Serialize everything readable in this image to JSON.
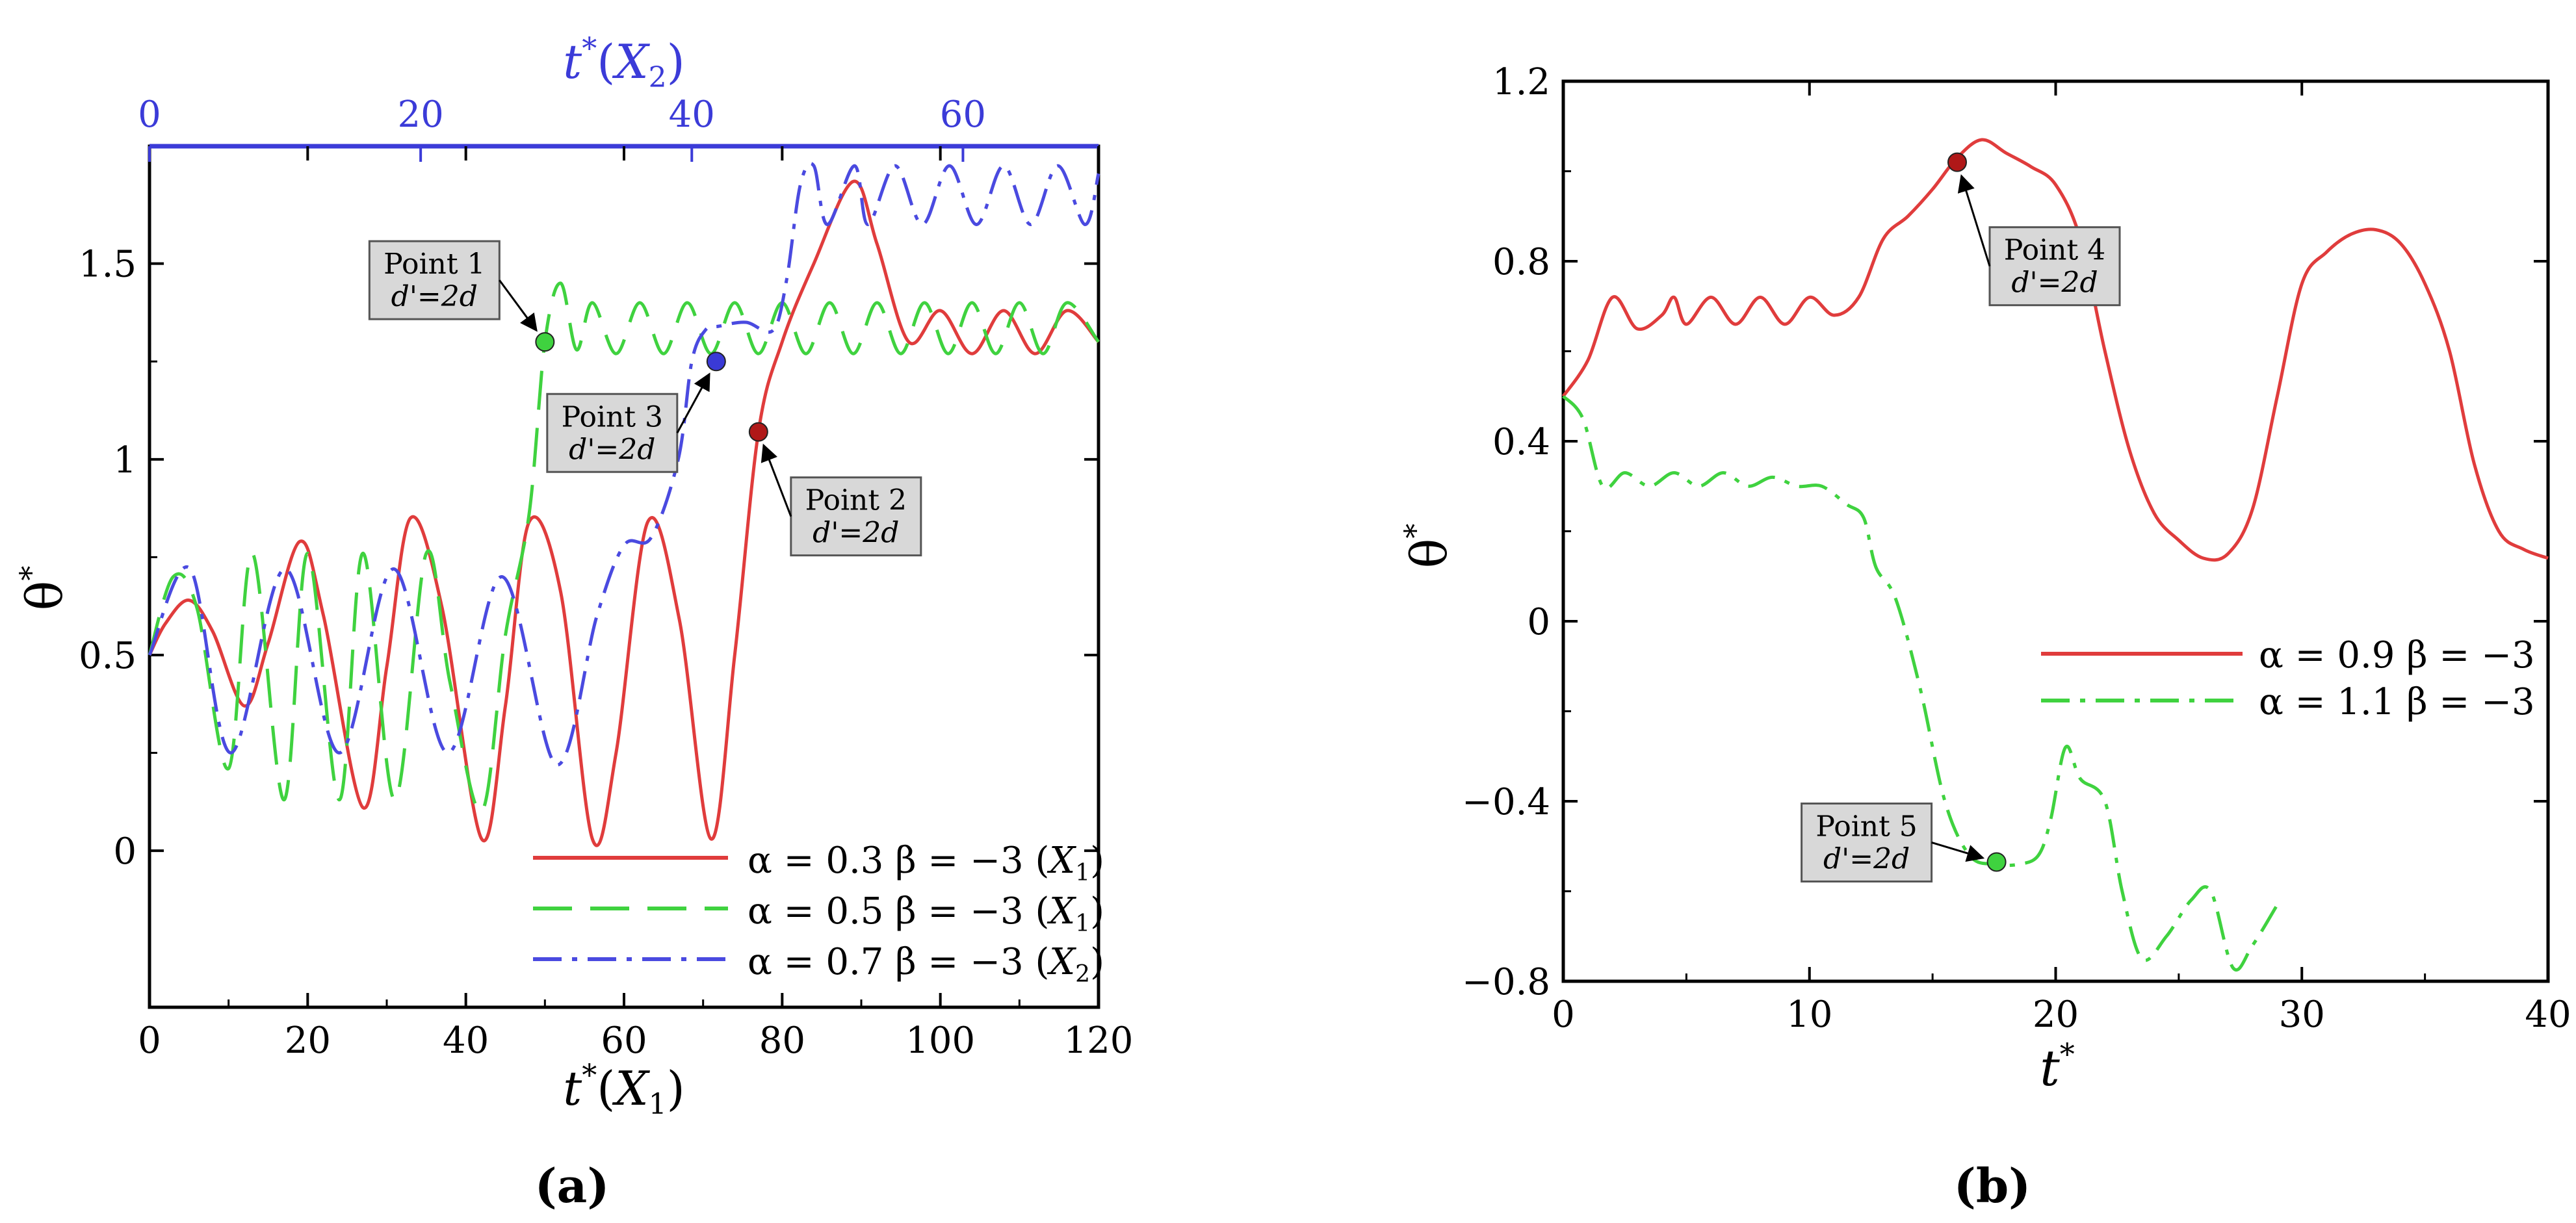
{
  "figure_labels": {
    "a": "(a)",
    "b": "(b)"
  },
  "colors": {
    "red": "#e03c3c",
    "green": "#3fd23f",
    "blue": "#4a4ae0",
    "axis": "#000000",
    "top_axis": "#3b3bd8"
  },
  "chart_data": [
    {
      "panel": "a",
      "type": "line",
      "xlabel": "t*(X1)",
      "top_xlabel": "t*(X2)",
      "ylabel": "θ*",
      "xlim": [
        0,
        120
      ],
      "ylim": [
        -0.4,
        1.8
      ],
      "top_xlim": [
        0,
        70
      ],
      "x_ticks": [
        0,
        20,
        40,
        60,
        80,
        100,
        120
      ],
      "y_ticks": [
        0,
        0.5,
        1,
        1.5
      ],
      "y_tick_labels": [
        "0",
        "0.5",
        "1",
        "1.5"
      ],
      "top_x_ticks": [
        0,
        20,
        40,
        60
      ],
      "legend_position": "bottom-right",
      "series": [
        {
          "name": "α = 0.3 β = −3 (X1)",
          "color": "#e03c3c",
          "dash": "solid",
          "axis": "bottom",
          "x": [
            0,
            2,
            5,
            8,
            12,
            15,
            19,
            22,
            27,
            30,
            33,
            37,
            42,
            45,
            48,
            52,
            56,
            59,
            63,
            67,
            71,
            74,
            77,
            80,
            84,
            89,
            92,
            96,
            100,
            104,
            108,
            112,
            116,
            120
          ],
          "y": [
            0.5,
            0.58,
            0.64,
            0.56,
            0.37,
            0.53,
            0.79,
            0.6,
            0.11,
            0.47,
            0.85,
            0.62,
            0.03,
            0.37,
            0.84,
            0.66,
            0.03,
            0.25,
            0.84,
            0.59,
            0.03,
            0.5,
            1.07,
            1.3,
            1.5,
            1.71,
            1.55,
            1.3,
            1.38,
            1.27,
            1.38,
            1.27,
            1.38,
            1.3
          ]
        },
        {
          "name": "α = 0.5 β = −3 (X1)",
          "color": "#3fd23f",
          "dash": "dashed",
          "axis": "bottom",
          "x": [
            0,
            3,
            6,
            10,
            13,
            17,
            20,
            24,
            27,
            31,
            35,
            38,
            42,
            45,
            48,
            50,
            52,
            54,
            56,
            59,
            62,
            65,
            68,
            71,
            74,
            77,
            80,
            83,
            86,
            89,
            92,
            95,
            98,
            101,
            104,
            107,
            110,
            113,
            116,
            120
          ],
          "y": [
            0.5,
            0.7,
            0.62,
            0.21,
            0.76,
            0.13,
            0.76,
            0.13,
            0.76,
            0.13,
            0.76,
            0.43,
            0.1,
            0.55,
            0.86,
            1.3,
            1.45,
            1.28,
            1.4,
            1.27,
            1.4,
            1.27,
            1.4,
            1.27,
            1.4,
            1.27,
            1.4,
            1.27,
            1.4,
            1.27,
            1.4,
            1.27,
            1.4,
            1.27,
            1.4,
            1.27,
            1.4,
            1.27,
            1.4,
            1.3
          ]
        },
        {
          "name": "α = 0.7 β = −3 (X2)",
          "color": "#4a4ae0",
          "dash": "dashdot",
          "axis": "top",
          "x": [
            0,
            3,
            6,
            10,
            14,
            18,
            22,
            26,
            30,
            33,
            35,
            37,
            39,
            40,
            41,
            42,
            44,
            46,
            47,
            48,
            49,
            50,
            52,
            53,
            55,
            57,
            59,
            61,
            63,
            65,
            67,
            69,
            70
          ],
          "y": [
            0.5,
            0.72,
            0.25,
            0.72,
            0.25,
            0.72,
            0.25,
            0.7,
            0.22,
            0.6,
            0.78,
            0.8,
            1.0,
            1.25,
            1.33,
            1.34,
            1.35,
            1.33,
            1.46,
            1.7,
            1.75,
            1.6,
            1.75,
            1.6,
            1.75,
            1.6,
            1.75,
            1.6,
            1.75,
            1.6,
            1.75,
            1.6,
            1.73
          ]
        }
      ],
      "points": [
        {
          "label": "Point 1",
          "sub": "d'=2d",
          "x": 50,
          "y": 1.3,
          "color": "#3fd23f"
        },
        {
          "label": "Point 2",
          "sub": "d'=2d",
          "x": 77,
          "y": 1.07,
          "color": "#b01818"
        },
        {
          "label": "Point 3",
          "sub": "d'=2d",
          "x": 41.8,
          "y": 1.25,
          "color": "#3a3ad6",
          "axis": "top"
        }
      ]
    },
    {
      "panel": "b",
      "type": "line",
      "xlabel": "t*",
      "ylabel": "θ*",
      "xlim": [
        0,
        40
      ],
      "ylim": [
        -0.8,
        1.2
      ],
      "x_ticks": [
        0,
        10,
        20,
        30,
        40
      ],
      "y_ticks": [
        -0.8,
        -0.4,
        0,
        0.4,
        0.8,
        1.2
      ],
      "y_tick_labels": [
        "−0.8",
        "−0.4",
        "0",
        "0.4",
        "0.8",
        "1.2"
      ],
      "legend_position": "middle-right",
      "series": [
        {
          "name": "α = 0.9 β = −3",
          "color": "#e03c3c",
          "dash": "solid",
          "x": [
            0,
            1,
            2,
            3,
            4,
            4.5,
            5,
            6,
            7,
            8,
            9,
            10,
            11,
            12,
            13,
            14,
            15,
            16,
            17,
            18,
            19,
            20,
            21,
            22,
            23,
            24,
            25,
            26,
            27,
            28,
            29,
            30,
            31,
            32,
            33,
            34,
            35,
            36,
            37,
            38,
            39,
            40
          ],
          "y": [
            0.5,
            0.58,
            0.72,
            0.65,
            0.68,
            0.72,
            0.66,
            0.72,
            0.66,
            0.72,
            0.66,
            0.72,
            0.68,
            0.72,
            0.85,
            0.9,
            0.96,
            1.03,
            1.07,
            1.04,
            1.01,
            0.97,
            0.85,
            0.6,
            0.38,
            0.24,
            0.18,
            0.14,
            0.15,
            0.25,
            0.5,
            0.75,
            0.82,
            0.86,
            0.87,
            0.84,
            0.75,
            0.6,
            0.35,
            0.2,
            0.16,
            0.14
          ]
        },
        {
          "name": "α = 1.1 β = −3",
          "color": "#3fd23f",
          "dash": "dashdot",
          "x": [
            0,
            0.8,
            1.6,
            2.5,
            3.5,
            4.5,
            5.5,
            6.5,
            7.5,
            8.5,
            9.5,
            10.5,
            11.5,
            12.2,
            12.7,
            13.5,
            14.5,
            15.5,
            16.5,
            17.5,
            18.5,
            19.3,
            19.8,
            20.4,
            21,
            22,
            22.7,
            23.5,
            24.5,
            25.5,
            26.3,
            27.2,
            28,
            29
          ],
          "y": [
            0.5,
            0.45,
            0.3,
            0.33,
            0.3,
            0.33,
            0.3,
            0.33,
            0.3,
            0.32,
            0.3,
            0.3,
            0.26,
            0.23,
            0.12,
            0.05,
            -0.15,
            -0.4,
            -0.52,
            -0.54,
            -0.54,
            -0.52,
            -0.44,
            -0.28,
            -0.35,
            -0.4,
            -0.6,
            -0.75,
            -0.7,
            -0.62,
            -0.6,
            -0.77,
            -0.72,
            -0.63
          ]
        }
      ],
      "points": [
        {
          "label": "Point 4",
          "sub": "d'=2d",
          "x": 16,
          "y": 1.02,
          "color": "#b01818"
        },
        {
          "label": "Point 5",
          "sub": "d'=2d",
          "x": 17.6,
          "y": -0.535,
          "color": "#3fd23f"
        }
      ]
    }
  ]
}
